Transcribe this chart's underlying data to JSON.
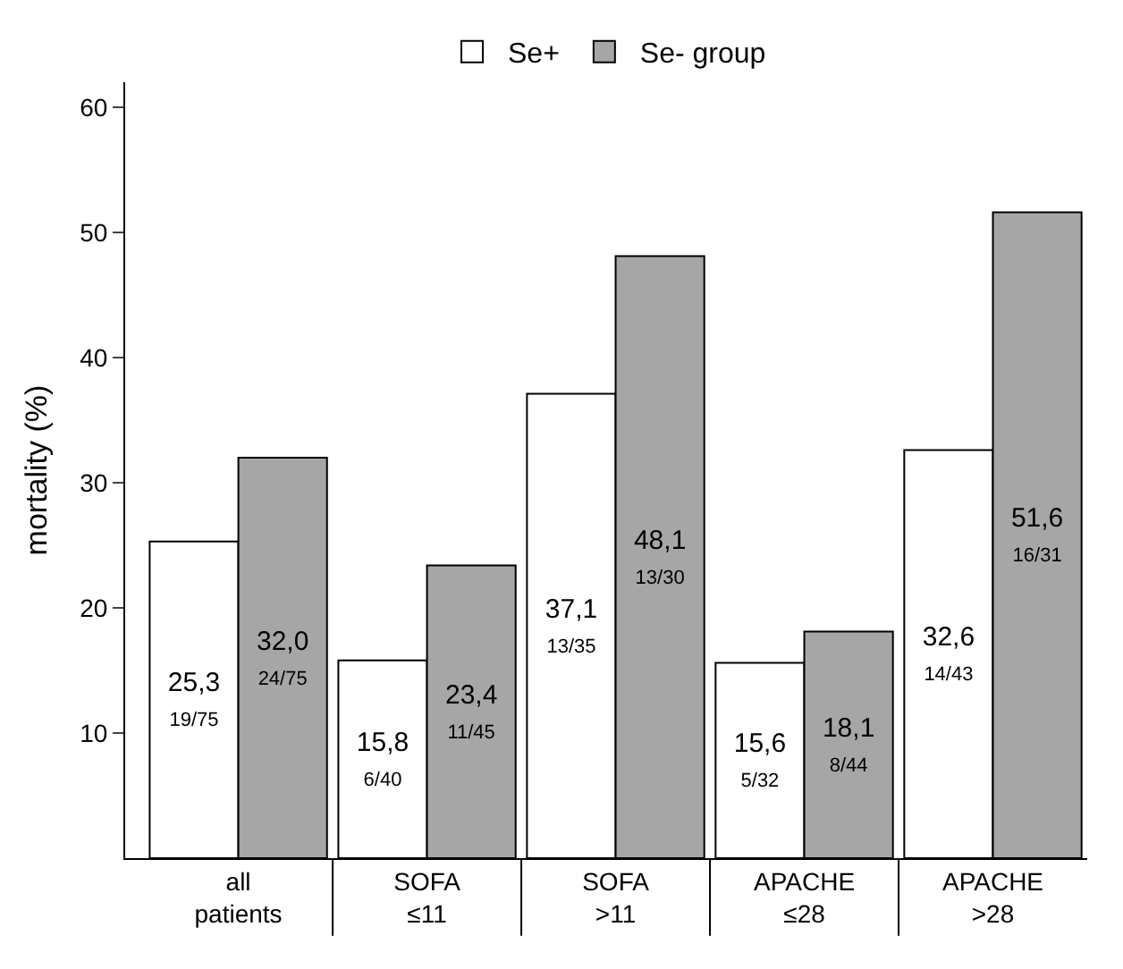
{
  "chart_data": {
    "type": "bar",
    "ylabel": "mortality (%)",
    "categories": [
      "all patients",
      "SOFA ≤11",
      "SOFA >11",
      "APACHE ≤28",
      "APACHE >28"
    ],
    "series": [
      {
        "name": "Se+",
        "color": "#ffffff",
        "values": [
          25.3,
          15.8,
          37.1,
          15.6,
          32.6
        ],
        "value_labels": [
          "25,3\n19/75",
          "15,8\n6/40",
          "37,1\n13/35",
          "15,6\n5/32",
          "32,6\n14/43"
        ]
      },
      {
        "name": "Se- group",
        "color": "#a6a6a6",
        "values": [
          32.0,
          23.4,
          48.1,
          18.1,
          51.6
        ],
        "value_labels": [
          "32,0\n24/75",
          "23,4\n11/45",
          "48,1\n13/30",
          "18,1\n8/44",
          "51,6\n16/31"
        ]
      }
    ],
    "ylim": [
      0,
      62
    ],
    "yticks": [
      10,
      20,
      30,
      40,
      50,
      60
    ],
    "grid": false,
    "legend": "top"
  }
}
